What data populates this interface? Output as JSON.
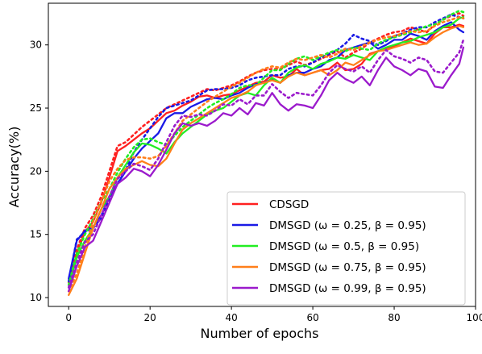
{
  "chart_data": {
    "type": "line",
    "xlabel": "Number of epochs",
    "ylabel": "Accuracy(%)",
    "xlim": [
      -5,
      100
    ],
    "ylim": [
      9.3,
      33.3
    ],
    "xticks": [
      "0",
      "20",
      "40",
      "60",
      "80",
      "100"
    ],
    "yticks": [
      "10",
      "15",
      "20",
      "25",
      "30"
    ],
    "legend_position": "lower-right",
    "series": [
      {
        "name": "CDSGD",
        "legend_label": "CDSGD",
        "color": "#ff2020",
        "style": "solid",
        "x": [
          0,
          2,
          4,
          6,
          8,
          10,
          12,
          14,
          16,
          18,
          20,
          22,
          24,
          26,
          28,
          30,
          32,
          34,
          36,
          38,
          40,
          42,
          44,
          46,
          48,
          50,
          52,
          54,
          56,
          58,
          60,
          62,
          64,
          66,
          68,
          70,
          72,
          74,
          76,
          78,
          80,
          82,
          84,
          86,
          88,
          90,
          92,
          94,
          96,
          97
        ],
        "y": [
          11.0,
          13.5,
          15.2,
          16.0,
          17.5,
          19.5,
          21.6,
          22.0,
          22.5,
          23.0,
          23.4,
          24.0,
          24.6,
          24.8,
          25.2,
          25.5,
          25.9,
          26.0,
          25.8,
          26.0,
          26.1,
          26.4,
          26.7,
          27.0,
          27.1,
          27.6,
          27.4,
          27.5,
          28.1,
          27.6,
          27.8,
          28.0,
          28.1,
          28.6,
          28.0,
          28.1,
          28.5,
          29.3,
          29.5,
          29.7,
          29.9,
          30.2,
          30.5,
          30.3,
          30.1,
          30.9,
          31.4,
          31.4,
          31.6,
          31.5
        ]
      },
      {
        "name": "CDSGD (dotted)",
        "color": "#ff2020",
        "style": "dotted",
        "x": [
          0,
          2,
          4,
          6,
          8,
          10,
          12,
          14,
          16,
          18,
          20,
          22,
          24,
          26,
          28,
          30,
          32,
          34,
          36,
          38,
          40,
          42,
          44,
          46,
          48,
          50,
          52,
          54,
          56,
          58,
          60,
          62,
          64,
          66,
          68,
          70,
          72,
          74,
          76,
          78,
          80,
          82,
          84,
          86,
          88,
          90,
          92,
          94,
          96,
          97
        ],
        "y": [
          11.2,
          13.8,
          15.5,
          16.5,
          18.0,
          20.0,
          22.0,
          22.3,
          22.9,
          23.5,
          24.0,
          24.5,
          25.0,
          25.3,
          25.6,
          25.9,
          26.2,
          26.5,
          26.4,
          26.6,
          26.8,
          27.1,
          27.5,
          27.8,
          28.0,
          28.1,
          28.1,
          28.4,
          28.7,
          28.4,
          28.6,
          28.9,
          29.2,
          29.5,
          29.0,
          29.4,
          29.7,
          30.2,
          30.5,
          30.8,
          31.0,
          31.1,
          31.4,
          31.2,
          31.0,
          31.6,
          32.0,
          32.3,
          32.5,
          32.3
        ]
      },
      {
        "name": "DMSGD (ω = 0.25, β = 0.95)",
        "legend_label": "DMSGD   (ω = 0.25, β = 0.95)",
        "color": "#1a1ae6",
        "style": "solid",
        "x": [
          0,
          2,
          4,
          6,
          8,
          10,
          12,
          14,
          16,
          18,
          20,
          22,
          24,
          26,
          28,
          30,
          32,
          34,
          36,
          38,
          40,
          42,
          44,
          46,
          48,
          50,
          52,
          54,
          56,
          58,
          60,
          62,
          64,
          66,
          68,
          70,
          72,
          74,
          76,
          78,
          80,
          82,
          84,
          86,
          88,
          90,
          92,
          94,
          96,
          97
        ],
        "y": [
          11.5,
          14.5,
          15.3,
          15.6,
          16.5,
          18.0,
          19.0,
          20.0,
          21.0,
          21.8,
          22.4,
          23.0,
          24.2,
          24.6,
          24.6,
          25.1,
          25.4,
          25.7,
          25.8,
          25.7,
          26.0,
          26.2,
          26.6,
          26.9,
          27.0,
          27.3,
          27.0,
          27.6,
          27.8,
          27.8,
          28.1,
          28.3,
          28.8,
          29.0,
          29.6,
          29.8,
          30.0,
          30.2,
          29.7,
          30.0,
          30.4,
          30.4,
          30.9,
          30.7,
          30.4,
          31.1,
          31.5,
          31.8,
          31.2,
          31.0
        ]
      },
      {
        "name": "DMSGD (ω = 0.25, β = 0.95) (dotted)",
        "color": "#1a1ae6",
        "style": "dotted",
        "x": [
          0,
          2,
          4,
          6,
          8,
          10,
          12,
          14,
          16,
          18,
          20,
          22,
          24,
          26,
          28,
          30,
          32,
          34,
          36,
          38,
          40,
          42,
          44,
          46,
          48,
          50,
          52,
          54,
          56,
          58,
          60,
          62,
          64,
          66,
          68,
          70,
          72,
          74,
          76,
          78,
          80,
          82,
          84,
          86,
          88,
          90,
          92,
          94,
          96,
          97
        ],
        "y": [
          11.3,
          14.6,
          15.2,
          15.5,
          16.3,
          17.8,
          19.0,
          20.1,
          21.5,
          22.5,
          23.4,
          24.3,
          25.0,
          25.2,
          25.4,
          25.6,
          26.0,
          26.4,
          26.5,
          26.5,
          26.6,
          26.8,
          27.2,
          27.4,
          27.5,
          27.6,
          27.6,
          28.1,
          28.3,
          28.3,
          28.6,
          29.0,
          29.3,
          29.6,
          30.1,
          30.8,
          30.5,
          30.3,
          30.0,
          30.3,
          30.7,
          30.9,
          31.2,
          31.4,
          31.4,
          31.8,
          32.1,
          32.4,
          32.2,
          32.1
        ]
      },
      {
        "name": "DMSGD (ω = 0.5, β = 0.95)",
        "legend_label": "DMSGD   (ω = 0.5, β = 0.95)",
        "color": "#22ee22",
        "style": "solid",
        "x": [
          0,
          2,
          4,
          6,
          8,
          10,
          12,
          14,
          16,
          18,
          20,
          22,
          24,
          26,
          28,
          30,
          32,
          34,
          36,
          38,
          40,
          42,
          44,
          46,
          48,
          50,
          52,
          54,
          56,
          58,
          60,
          62,
          64,
          66,
          68,
          70,
          72,
          74,
          76,
          78,
          80,
          82,
          84,
          86,
          88,
          90,
          92,
          94,
          96,
          97
        ],
        "y": [
          10.8,
          13.2,
          14.5,
          15.5,
          17.0,
          18.0,
          19.5,
          20.5,
          21.5,
          22.2,
          22.1,
          21.8,
          21.4,
          22.3,
          23.0,
          23.5,
          24.0,
          24.5,
          24.8,
          25.0,
          25.5,
          26.0,
          26.2,
          26.0,
          26.8,
          27.4,
          27.0,
          27.8,
          28.2,
          28.4,
          28.1,
          28.5,
          28.7,
          29.0,
          28.9,
          29.2,
          29.0,
          28.8,
          29.5,
          29.8,
          30.0,
          30.2,
          30.3,
          30.6,
          30.8,
          31.0,
          31.4,
          31.6,
          32.1,
          32.2
        ]
      },
      {
        "name": "DMSGD (ω = 0.5, β = 0.95) (dotted)",
        "color": "#22ee22",
        "style": "dotted",
        "x": [
          0,
          2,
          4,
          6,
          8,
          10,
          12,
          14,
          16,
          18,
          20,
          22,
          24,
          26,
          28,
          30,
          32,
          34,
          36,
          38,
          40,
          42,
          44,
          46,
          48,
          50,
          52,
          54,
          56,
          58,
          60,
          62,
          64,
          66,
          68,
          70,
          72,
          74,
          76,
          78,
          80,
          82,
          84,
          86,
          88,
          90,
          92,
          94,
          96,
          97
        ],
        "y": [
          11.0,
          13.5,
          15.0,
          16.2,
          17.6,
          18.6,
          19.9,
          21.0,
          21.9,
          22.5,
          22.6,
          22.3,
          22.1,
          22.8,
          23.5,
          24.0,
          24.5,
          25.0,
          25.4,
          25.7,
          26.1,
          26.6,
          26.8,
          26.8,
          27.4,
          28.0,
          28.0,
          28.5,
          28.9,
          29.1,
          28.8,
          29.1,
          29.4,
          29.6,
          29.5,
          29.8,
          29.7,
          29.6,
          30.1,
          30.4,
          30.6,
          30.8,
          31.0,
          31.2,
          31.5,
          31.6,
          32.0,
          32.4,
          32.7,
          32.6
        ]
      },
      {
        "name": "DMSGD (ω = 0.75, β = 0.95)",
        "legend_label": "DMSGD   (ω = 0.75, β = 0.95)",
        "color": "#ff7f1a",
        "style": "solid",
        "x": [
          0,
          2,
          4,
          6,
          8,
          10,
          12,
          14,
          16,
          18,
          20,
          22,
          24,
          26,
          28,
          30,
          32,
          34,
          36,
          38,
          40,
          42,
          44,
          46,
          48,
          50,
          52,
          54,
          56,
          58,
          60,
          62,
          64,
          66,
          68,
          70,
          72,
          74,
          76,
          78,
          80,
          82,
          84,
          86,
          88,
          90,
          92,
          94,
          96,
          97
        ],
        "y": [
          10.2,
          11.5,
          13.5,
          15.5,
          17.0,
          18.6,
          19.5,
          20.2,
          20.5,
          20.8,
          20.5,
          20.4,
          21.0,
          22.2,
          23.3,
          23.8,
          24.2,
          24.6,
          25.0,
          25.4,
          25.8,
          26.0,
          26.3,
          26.8,
          27.0,
          27.2,
          27.0,
          27.5,
          27.8,
          27.6,
          27.8,
          28.0,
          27.6,
          28.0,
          28.6,
          28.4,
          28.8,
          29.2,
          29.5,
          29.6,
          29.8,
          30.0,
          30.2,
          30.0,
          30.1,
          30.6,
          31.0,
          31.3,
          31.5,
          31.4
        ]
      },
      {
        "name": "DMSGD (ω = 0.75, β = 0.95) (dotted)",
        "color": "#ff7f1a",
        "style": "dotted",
        "x": [
          0,
          2,
          4,
          6,
          8,
          10,
          12,
          14,
          16,
          18,
          20,
          22,
          24,
          26,
          28,
          30,
          32,
          34,
          36,
          38,
          40,
          42,
          44,
          46,
          48,
          50,
          52,
          54,
          56,
          58,
          60,
          62,
          64,
          66,
          68,
          70,
          72,
          74,
          76,
          78,
          80,
          82,
          84,
          86,
          88,
          90,
          92,
          94,
          96,
          97
        ],
        "y": [
          10.5,
          11.9,
          14.0,
          16.0,
          17.6,
          19.2,
          20.2,
          20.9,
          21.1,
          21.1,
          21.0,
          21.2,
          22.0,
          23.0,
          24.0,
          24.5,
          25.0,
          25.5,
          25.9,
          26.3,
          26.7,
          27.0,
          27.4,
          27.8,
          28.1,
          28.3,
          28.2,
          28.6,
          28.9,
          28.8,
          29.0,
          29.2,
          29.0,
          29.3,
          29.7,
          29.6,
          29.9,
          30.2,
          30.4,
          30.6,
          30.7,
          30.9,
          31.1,
          31.0,
          31.1,
          31.5,
          31.8,
          32.0,
          32.2,
          32.1
        ]
      },
      {
        "name": "DMSGD (ω = 0.99, β = 0.95)",
        "legend_label": "DMSGD   (ω = 0.99, β = 0.95)",
        "color": "#9b1acc",
        "style": "solid",
        "x": [
          0,
          2,
          4,
          6,
          8,
          10,
          12,
          14,
          16,
          18,
          20,
          22,
          24,
          26,
          28,
          30,
          32,
          34,
          36,
          38,
          40,
          42,
          44,
          46,
          48,
          50,
          52,
          54,
          56,
          58,
          60,
          62,
          64,
          66,
          68,
          70,
          72,
          74,
          76,
          78,
          80,
          82,
          84,
          86,
          88,
          90,
          92,
          94,
          96,
          97
        ],
        "y": [
          10.5,
          12.5,
          14.0,
          14.5,
          16.0,
          17.5,
          19.0,
          19.5,
          20.2,
          20.0,
          19.6,
          20.5,
          21.7,
          23.0,
          23.8,
          23.6,
          23.8,
          23.6,
          24.0,
          24.6,
          24.4,
          25.0,
          24.5,
          25.4,
          25.2,
          26.2,
          25.3,
          24.8,
          25.3,
          25.2,
          25.0,
          26.0,
          27.2,
          27.8,
          27.3,
          27.0,
          27.5,
          26.8,
          28.0,
          29.0,
          28.3,
          28.0,
          27.6,
          28.1,
          27.9,
          26.7,
          26.6,
          27.6,
          28.5,
          29.8
        ]
      },
      {
        "name": "DMSGD (ω = 0.99, β = 0.95) (dotted)",
        "color": "#9b1acc",
        "style": "dotted",
        "x": [
          0,
          2,
          4,
          6,
          8,
          10,
          12,
          14,
          16,
          18,
          20,
          22,
          24,
          26,
          28,
          30,
          32,
          34,
          36,
          38,
          40,
          42,
          44,
          46,
          48,
          50,
          52,
          54,
          56,
          58,
          60,
          62,
          64,
          66,
          68,
          70,
          72,
          74,
          76,
          78,
          80,
          82,
          84,
          86,
          88,
          90,
          92,
          94,
          96,
          97
        ],
        "y": [
          10.8,
          12.8,
          14.4,
          15.0,
          16.5,
          18.0,
          19.4,
          20.0,
          20.6,
          20.4,
          20.1,
          21.0,
          22.3,
          23.6,
          24.4,
          24.3,
          24.5,
          24.4,
          24.8,
          25.3,
          25.2,
          25.7,
          25.3,
          26.0,
          26.0,
          26.9,
          26.3,
          25.8,
          26.2,
          26.1,
          26.0,
          26.8,
          27.8,
          28.4,
          28.1,
          27.9,
          28.3,
          27.8,
          28.8,
          29.6,
          29.1,
          28.9,
          28.6,
          29.0,
          28.8,
          27.9,
          27.8,
          28.6,
          29.4,
          30.4
        ]
      }
    ]
  }
}
